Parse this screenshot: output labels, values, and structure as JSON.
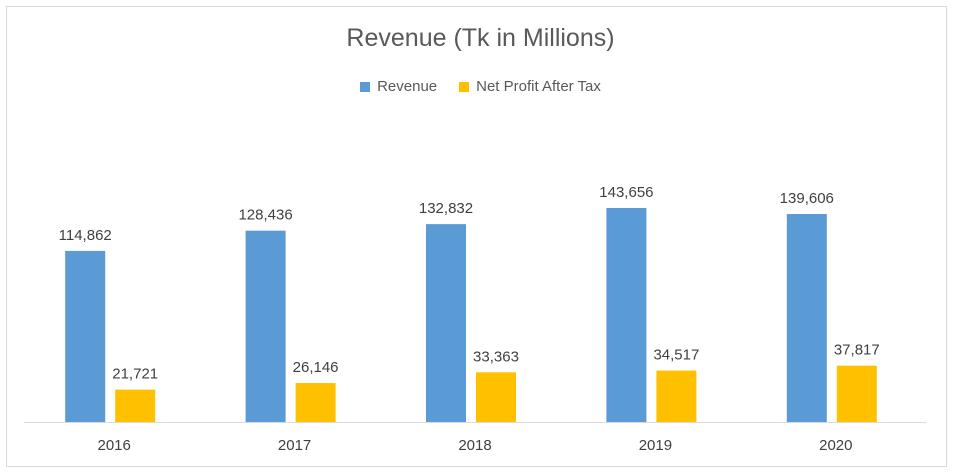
{
  "chart_data": {
    "type": "bar",
    "title": "Revenue (Tk in Millions)",
    "xlabel": "",
    "ylabel": "",
    "categories": [
      "2016",
      "2017",
      "2018",
      "2019",
      "2020"
    ],
    "series": [
      {
        "name": "Revenue",
        "values": [
          114862,
          128436,
          132832,
          143656,
          139606
        ],
        "labels": [
          "114,862",
          "128,436",
          "132,832",
          "143,656",
          "139,606"
        ],
        "color": "#5b9bd5"
      },
      {
        "name": "Net Profit After Tax",
        "values": [
          21721,
          26146,
          33363,
          34517,
          37817
        ],
        "labels": [
          "21,721",
          "26,146",
          "33,363",
          "34,517",
          "37,817"
        ],
        "color": "#ffc000"
      }
    ],
    "ylim": [
      0,
      160000
    ],
    "grid": false,
    "legend_position": "top"
  }
}
